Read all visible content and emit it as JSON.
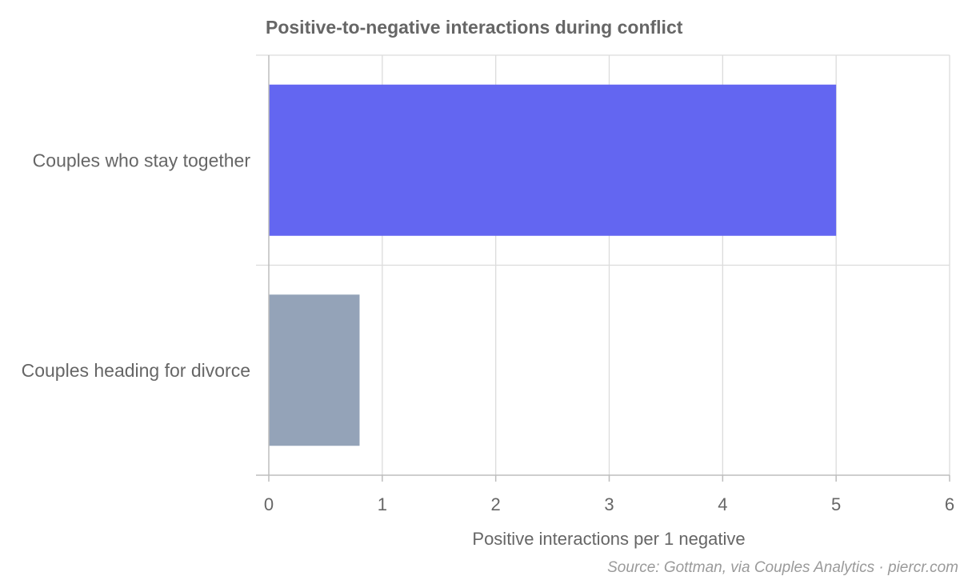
{
  "chart_data": {
    "type": "bar",
    "orientation": "horizontal",
    "title": "Positive-to-negative interactions during conflict",
    "xlabel": "Positive interactions per 1 negative",
    "ylabel": "",
    "categories": [
      "Couples who stay together",
      "Couples heading for divorce"
    ],
    "values": [
      5,
      0.8
    ],
    "bar_colors": [
      "#6366f1",
      "#94a3b8"
    ],
    "xlim": [
      0,
      6
    ],
    "xticks": [
      0,
      1,
      2,
      3,
      4,
      5,
      6
    ],
    "grid": true,
    "source": "Source: Gottman, via Couples Analytics · piercr.com"
  }
}
